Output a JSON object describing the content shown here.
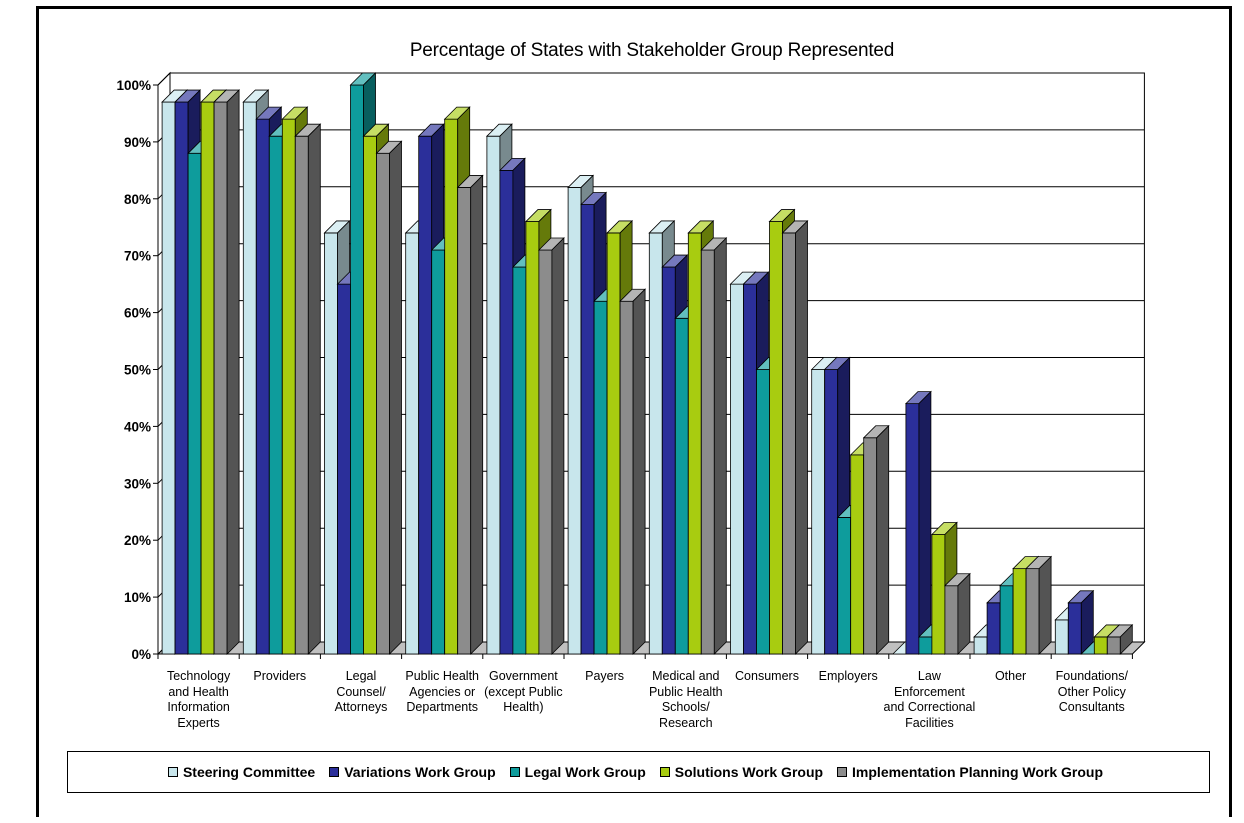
{
  "chart_data": {
    "type": "bar",
    "title": "Percentage of States with Stakeholder Group Represented",
    "xlabel": "",
    "ylabel": "",
    "ylim": [
      0,
      100
    ],
    "grid": true,
    "legend_position": "bottom",
    "y_ticks": [
      "0%",
      "10%",
      "20%",
      "30%",
      "40%",
      "50%",
      "60%",
      "70%",
      "80%",
      "90%",
      "100%"
    ],
    "categories": [
      "Technology\nand Health\nInformation\nExperts",
      "Providers",
      "Legal\nCounsel/\nAttorneys",
      "Public Health\nAgencies or\nDepartments",
      "Government\n(except Public\nHealth)",
      "Payers",
      "Medical and\nPublic Health\nSchools/\nResearch",
      "Consumers",
      "Employers",
      "Law\nEnforcement\nand Correctional\nFacilities",
      "Other",
      "Foundations/\nOther Policy\nConsultants"
    ],
    "series": [
      {
        "name": "Steering Committee",
        "color": "#c8e6ec",
        "values": [
          97,
          97,
          74,
          74,
          91,
          82,
          74,
          65,
          50,
          0,
          3,
          6
        ]
      },
      {
        "name": "Variations Work Group",
        "color": "#2b2f9a",
        "values": [
          97,
          94,
          65,
          91,
          85,
          79,
          68,
          65,
          50,
          44,
          9,
          9
        ]
      },
      {
        "name": "Legal Work Group",
        "color": "#0e9c9c",
        "values": [
          88,
          91,
          100,
          71,
          68,
          62,
          59,
          50,
          24,
          3,
          12,
          0
        ]
      },
      {
        "name": "Solutions Work Group",
        "color": "#a8cc10",
        "values": [
          97,
          94,
          91,
          94,
          76,
          74,
          74,
          76,
          35,
          21,
          15,
          3
        ]
      },
      {
        "name": "Implementation Planning Work Group",
        "color": "#8c8c8c",
        "values": [
          97,
          91,
          88,
          82,
          71,
          62,
          71,
          74,
          38,
          12,
          15,
          3
        ]
      }
    ]
  }
}
